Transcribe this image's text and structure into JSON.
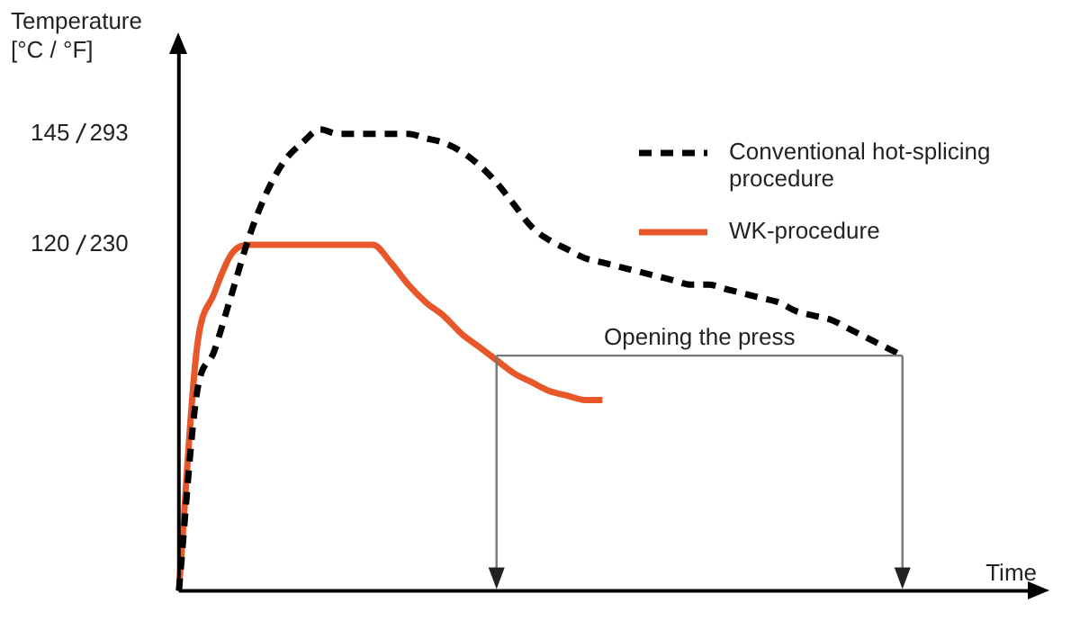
{
  "chart_data": {
    "type": "line",
    "ylabel": "Temperature\n[°C / °F]",
    "xlabel": "Time",
    "categories": [
      null,
      null,
      null,
      null,
      null,
      null,
      null,
      null,
      null,
      null,
      null,
      null,
      null,
      null,
      null,
      null,
      null,
      null,
      null,
      null,
      null,
      null,
      null,
      null,
      null,
      null,
      null,
      null,
      null,
      null,
      null,
      null,
      null,
      null,
      null,
      null,
      null,
      null,
      null,
      null,
      null,
      null,
      null,
      null,
      null,
      null,
      null,
      null,
      null
    ],
    "ylim": [
      42,
      163
    ],
    "yticks": [
      120,
      145
    ],
    "y2lim": [
      33.4,
      338.4
    ],
    "y2ticks": [
      230,
      293
    ],
    "tick_labels": "y",
    "grid": false,
    "legend": "top right",
    "marker": "none",
    "series": [
      {
        "name": "Conventional hot-splicing procedure",
        "color": "#000000",
        "line_style": "dashed",
        "values": [
          42,
          86,
          96,
          109,
          122,
          132,
          139,
          143,
          146,
          145,
          145,
          145,
          145,
          145,
          144,
          143,
          141,
          138,
          134,
          129,
          124,
          121,
          119,
          117,
          116,
          115,
          114,
          113,
          112,
          111,
          111,
          110,
          109,
          108,
          107,
          105,
          104,
          103,
          101,
          99,
          97,
          95,
          null,
          null,
          null,
          null,
          null,
          null,
          null
        ]
      },
      {
        "name": "WK-procedure",
        "color": "#e8572a",
        "line_style": "solid",
        "values": [
          42,
          96,
          109,
          118,
          120,
          120,
          120,
          120,
          120,
          120,
          120,
          120,
          116,
          111,
          107,
          104,
          100,
          97,
          94,
          91,
          89,
          87,
          86,
          85,
          85,
          null,
          null,
          null,
          null,
          null,
          null,
          null,
          null,
          null,
          null,
          null,
          null,
          null,
          null,
          null,
          null,
          null,
          null,
          null,
          null,
          null,
          null,
          null,
          null
        ]
      }
    ],
    "ref_lines": [
      {
        "axis": "y",
        "value": 95,
        "label": "Opening the press",
        "color": "#777777"
      }
    ]
  }
}
